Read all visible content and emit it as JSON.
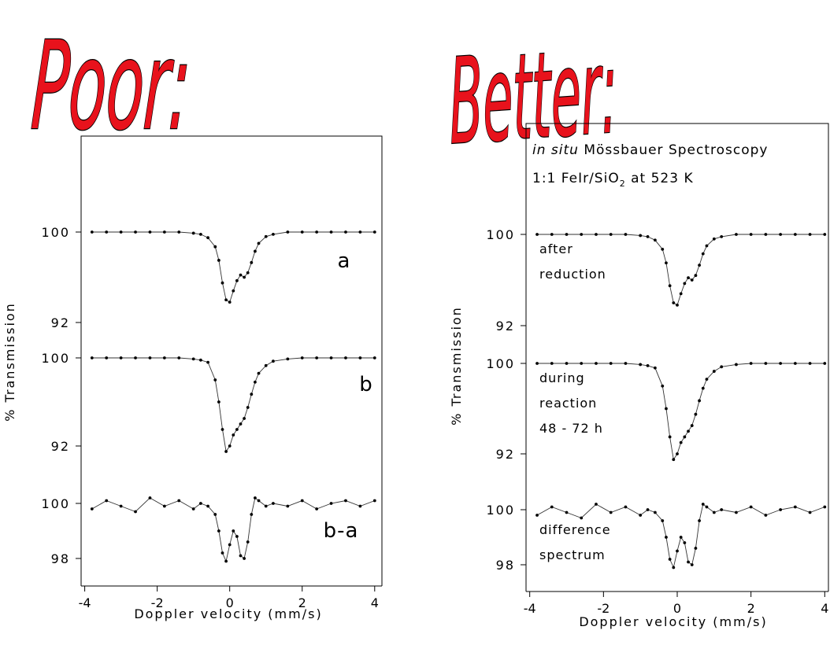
{
  "chart_data": [
    {
      "type": "line",
      "title": "Poor:",
      "xlabel": "Doppler velocity (mm/s)",
      "ylabel": "% Transmission",
      "xlim": [
        -4.1,
        4.2
      ],
      "xticks": [
        -4,
        -2,
        0,
        2,
        4
      ],
      "x": [
        -3.8,
        -3.4,
        -3,
        -2.6,
        -2.2,
        -1.8,
        -1.4,
        -1,
        -0.8,
        -0.6,
        -0.4,
        -0.3,
        -0.2,
        -0.1,
        0,
        0.1,
        0.2,
        0.3,
        0.4,
        0.5,
        0.6,
        0.7,
        0.8,
        1,
        1.2,
        1.6,
        2,
        2.4,
        2.8,
        3.2,
        3.6,
        4
      ],
      "panels": [
        {
          "label": [
            "a"
          ],
          "ylim": [
            92,
            100
          ],
          "yticks": [
            92,
            100
          ],
          "values": [
            100,
            100,
            100,
            100,
            100,
            100,
            100,
            99.9,
            99.8,
            99.5,
            98.7,
            97.5,
            95.5,
            94,
            93.8,
            94.8,
            95.7,
            96.2,
            96,
            96.4,
            97.3,
            98.3,
            99,
            99.6,
            99.8,
            100,
            100,
            100,
            100,
            100,
            100,
            100
          ]
        },
        {
          "label": [
            "b"
          ],
          "ylim": [
            92,
            100
          ],
          "yticks": [
            92,
            100
          ],
          "values": [
            100,
            100,
            100,
            100,
            100,
            100,
            100,
            99.9,
            99.8,
            99.6,
            98,
            96,
            93.5,
            91.5,
            92,
            93,
            93.5,
            94,
            94.5,
            95.5,
            96.7,
            97.8,
            98.6,
            99.3,
            99.7,
            99.9,
            100,
            100,
            100,
            100,
            100,
            100
          ]
        },
        {
          "label": [
            "b-a"
          ],
          "ylim": [
            98,
            100
          ],
          "yticks": [
            98,
            100
          ],
          "values": [
            99.8,
            100.1,
            99.9,
            99.7,
            100.2,
            99.9,
            100.1,
            99.8,
            100,
            99.9,
            99.6,
            99,
            98.2,
            97.9,
            98.5,
            99,
            98.8,
            98.1,
            98,
            98.6,
            99.6,
            100.2,
            100.1,
            99.9,
            100,
            99.9,
            100.1,
            99.8,
            100,
            100.1,
            99.9,
            100.1
          ]
        }
      ]
    },
    {
      "type": "line",
      "title": "Better:",
      "xlabel": "Doppler velocity (mm/s)",
      "ylabel": "% Transmission",
      "annotation": [
        [
          "in situ",
          " Mössbauer Spectroscopy"
        ],
        [
          "1:1 FeIr/SiO",
          "2",
          " at 523 K"
        ]
      ],
      "xlim": [
        -4.1,
        4.1
      ],
      "xticks": [
        -4,
        -2,
        0,
        2,
        4
      ],
      "x": [
        -3.8,
        -3.4,
        -3,
        -2.6,
        -2.2,
        -1.8,
        -1.4,
        -1,
        -0.8,
        -0.6,
        -0.4,
        -0.3,
        -0.2,
        -0.1,
        0,
        0.1,
        0.2,
        0.3,
        0.4,
        0.5,
        0.6,
        0.7,
        0.8,
        1,
        1.2,
        1.6,
        2,
        2.4,
        2.8,
        3.2,
        3.6,
        4
      ],
      "panels": [
        {
          "label": [
            "after",
            "reduction"
          ],
          "ylim": [
            92,
            100
          ],
          "yticks": [
            92,
            100
          ],
          "values": [
            100,
            100,
            100,
            100,
            100,
            100,
            100,
            99.9,
            99.8,
            99.5,
            98.7,
            97.5,
            95.5,
            94,
            93.8,
            94.8,
            95.7,
            96.2,
            96,
            96.4,
            97.3,
            98.3,
            99,
            99.6,
            99.8,
            100,
            100,
            100,
            100,
            100,
            100,
            100
          ]
        },
        {
          "label": [
            "during",
            "reaction",
            "48 - 72 h"
          ],
          "ylim": [
            92,
            100
          ],
          "yticks": [
            92,
            100
          ],
          "values": [
            100,
            100,
            100,
            100,
            100,
            100,
            100,
            99.9,
            99.8,
            99.6,
            98,
            96,
            93.5,
            91.5,
            92,
            93,
            93.5,
            94,
            94.5,
            95.5,
            96.7,
            97.8,
            98.6,
            99.3,
            99.7,
            99.9,
            100,
            100,
            100,
            100,
            100,
            100
          ]
        },
        {
          "label": [
            "difference",
            "spectrum"
          ],
          "ylim": [
            98,
            100
          ],
          "yticks": [
            98,
            100
          ],
          "values": [
            99.8,
            100.1,
            99.9,
            99.7,
            100.2,
            99.9,
            100.1,
            99.8,
            100,
            99.9,
            99.6,
            99,
            98.2,
            97.9,
            98.5,
            99,
            98.8,
            98.1,
            98,
            98.6,
            99.6,
            100.2,
            100.1,
            99.9,
            100,
            99.9,
            100.1,
            99.8,
            100,
            100.1,
            99.9,
            100.1
          ]
        }
      ]
    }
  ]
}
